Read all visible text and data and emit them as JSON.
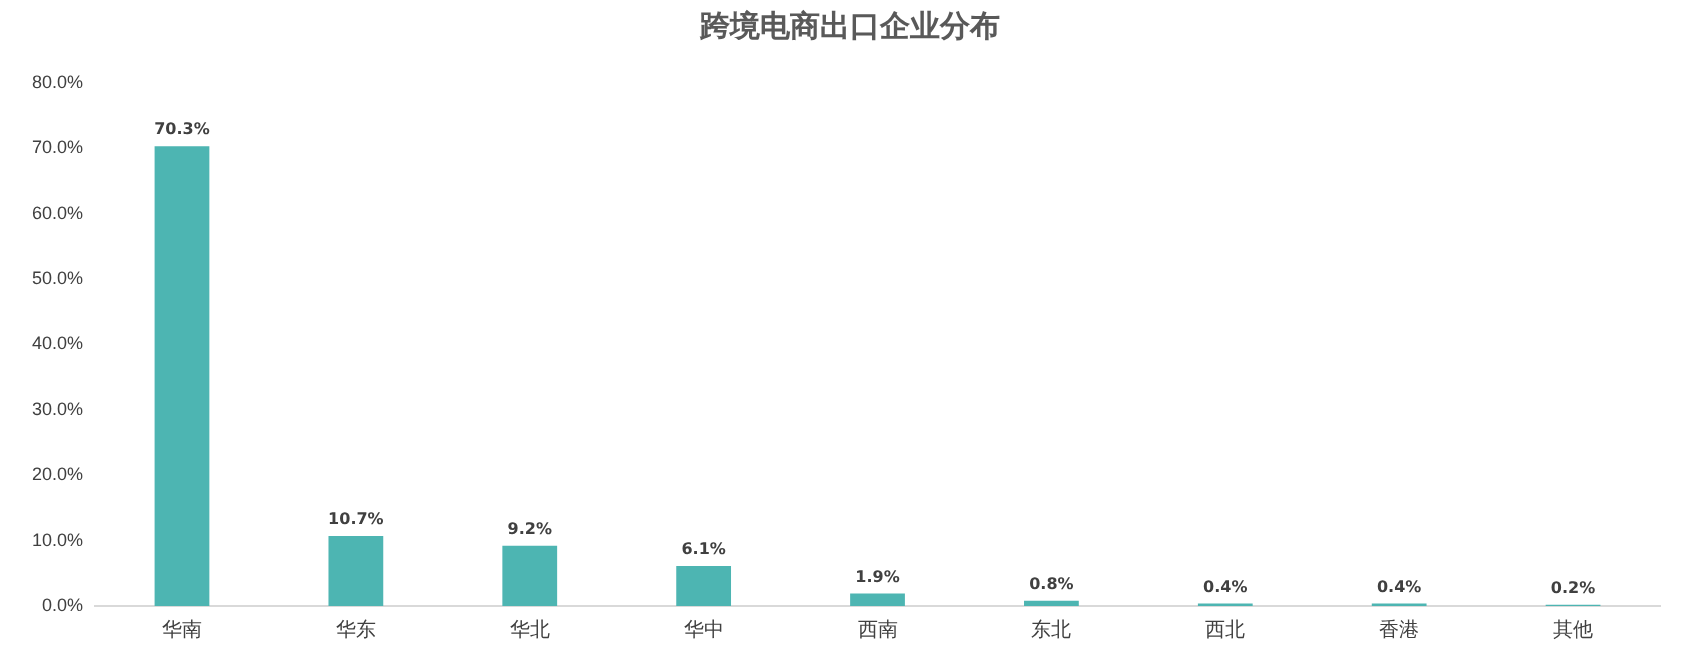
{
  "chart_data": {
    "type": "bar",
    "title": "跨境电商出口企业分布",
    "categories": [
      "华南",
      "华东",
      "华北",
      "华中",
      "西南",
      "东北",
      "西北",
      "香港",
      "其他"
    ],
    "values": [
      70.3,
      10.7,
      9.2,
      6.1,
      1.9,
      0.8,
      0.4,
      0.4,
      0.2
    ],
    "value_labels": [
      "70.3%",
      "10.7%",
      "9.2%",
      "6.1%",
      "1.9%",
      "0.8%",
      "0.4%",
      "0.4%",
      "0.2%"
    ],
    "color": "#4db5b2",
    "ylim": [
      0,
      80
    ],
    "yticks": [
      {
        "value": 0,
        "label": "0.0%"
      },
      {
        "value": 10,
        "label": "10.0%"
      },
      {
        "value": 20,
        "label": "20.0%"
      },
      {
        "value": 30,
        "label": "30.0%"
      },
      {
        "value": 40,
        "label": "40.0%"
      },
      {
        "value": 50,
        "label": "50.0%"
      },
      {
        "value": 60,
        "label": "60.0%"
      },
      {
        "value": 70,
        "label": "70.0%"
      },
      {
        "value": 80,
        "label": "80.0%"
      }
    ],
    "grid": false,
    "legend": false
  }
}
